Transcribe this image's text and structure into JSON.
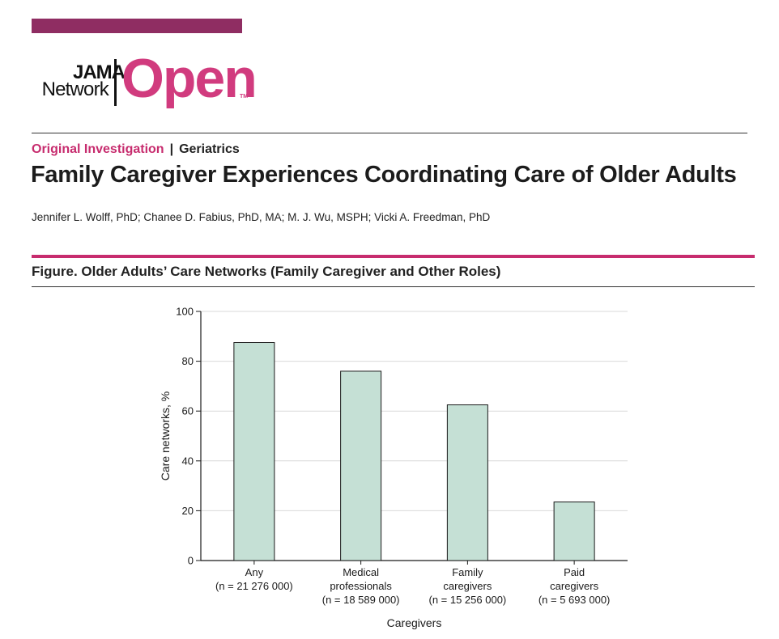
{
  "header": {
    "logo_line1": "JAMA",
    "logo_line2": "Network",
    "logo_main": "Open",
    "logo_tm": "TM",
    "article_type": "Original Investigation",
    "separator": "|",
    "section": "Geriatrics",
    "title": "Family Caregiver Experiences Coordinating Care of Older Adults",
    "authors": "Jennifer L. Wolff, PhD; Chanee D. Fabius, PhD, MA; M. J. Wu, MSPH; Vicki A. Freedman, PhD"
  },
  "figure": {
    "caption": "Figure. Older Adults’ Care Networks (Family Caregiver and Other Roles)"
  },
  "colors": {
    "brand_pink": "#c72c6e",
    "brand_purple": "#8f2d62",
    "bar_fill": "#c5e0d5",
    "bar_stroke": "#1a1a1a",
    "grid": "#d9d9d9"
  },
  "chart_data": {
    "type": "bar",
    "title": "",
    "xlabel": "Caregivers",
    "ylabel": "Care networks, %",
    "ylim": [
      0,
      100
    ],
    "yticks": [
      0,
      20,
      40,
      60,
      80,
      100
    ],
    "grid": true,
    "categories": [
      [
        "Any",
        "(n = 21 276 000)"
      ],
      [
        "Medical",
        "professionals",
        "(n = 18 589 000)"
      ],
      [
        "Family",
        "caregivers",
        "(n = 15 256 000)"
      ],
      [
        "Paid",
        "caregivers",
        "(n = 5 693 000)"
      ]
    ],
    "values": [
      87.5,
      76,
      62.5,
      23.5
    ]
  }
}
